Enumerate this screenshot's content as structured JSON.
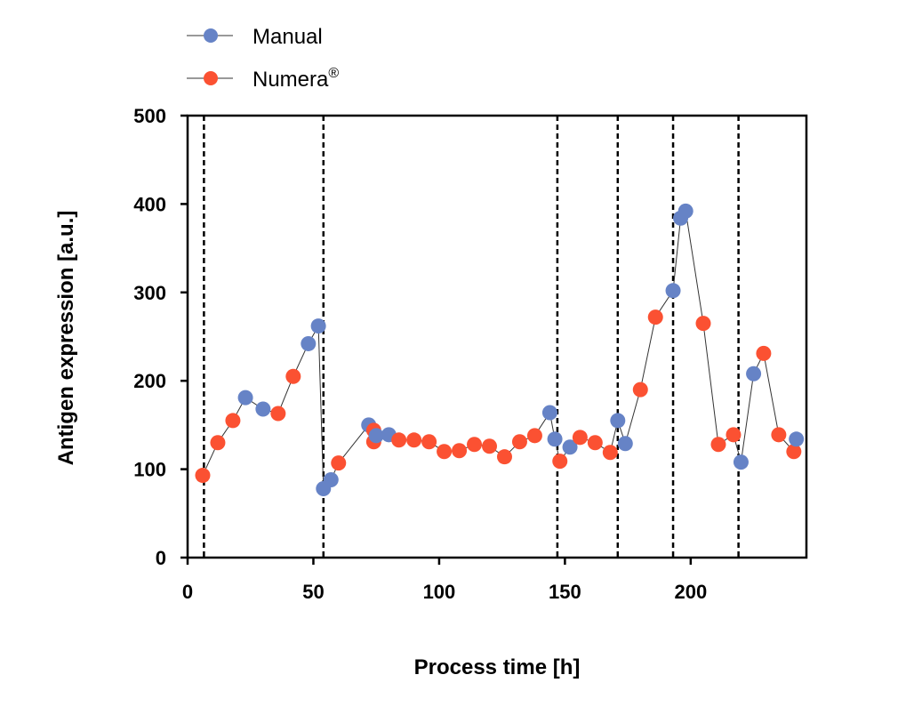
{
  "chart_data": {
    "type": "line",
    "xlabel": "Process time [h]",
    "ylabel": "Antigen expression [a.u.]",
    "xlim": [
      0,
      246
    ],
    "ylim": [
      0,
      500
    ],
    "xticks": [
      0,
      50,
      100,
      150,
      200
    ],
    "yticks": [
      0,
      100,
      200,
      300,
      400,
      500
    ],
    "grid": false,
    "legend_position": "top-left",
    "vertical_dashed_lines": [
      6.5,
      54,
      147,
      171,
      193,
      219
    ],
    "series": [
      {
        "name": "Manual",
        "color": "#6683c6",
        "points": [
          [
            23,
            181
          ],
          [
            30,
            168
          ],
          [
            48,
            242
          ],
          [
            52,
            262
          ],
          [
            54,
            78
          ],
          [
            57,
            88
          ],
          [
            72,
            150
          ],
          [
            75,
            138
          ],
          [
            80,
            139
          ],
          [
            144,
            164
          ],
          [
            146,
            134
          ],
          [
            152,
            125
          ],
          [
            171,
            155
          ],
          [
            174,
            129
          ],
          [
            193,
            302
          ],
          [
            196,
            384
          ],
          [
            198,
            392
          ],
          [
            220,
            108
          ],
          [
            225,
            208
          ],
          [
            242,
            134
          ]
        ]
      },
      {
        "name": "Numera",
        "name_superscript": "®",
        "color": "#fb5132",
        "points": [
          [
            6,
            93
          ],
          [
            12,
            130
          ],
          [
            18,
            155
          ],
          [
            36,
            163
          ],
          [
            42,
            205
          ],
          [
            60,
            107
          ],
          [
            74,
            144
          ],
          [
            74,
            131
          ],
          [
            84,
            133
          ],
          [
            90,
            133
          ],
          [
            96,
            131
          ],
          [
            102,
            120
          ],
          [
            108,
            121
          ],
          [
            114,
            128
          ],
          [
            120,
            126
          ],
          [
            126,
            114
          ],
          [
            132,
            131
          ],
          [
            138,
            138
          ],
          [
            148,
            109
          ],
          [
            156,
            136
          ],
          [
            162,
            130
          ],
          [
            168,
            119
          ],
          [
            180,
            190
          ],
          [
            186,
            272
          ],
          [
            205,
            265
          ],
          [
            211,
            128
          ],
          [
            217,
            139
          ],
          [
            229,
            231
          ],
          [
            235,
            139
          ],
          [
            241,
            120
          ]
        ]
      }
    ]
  }
}
